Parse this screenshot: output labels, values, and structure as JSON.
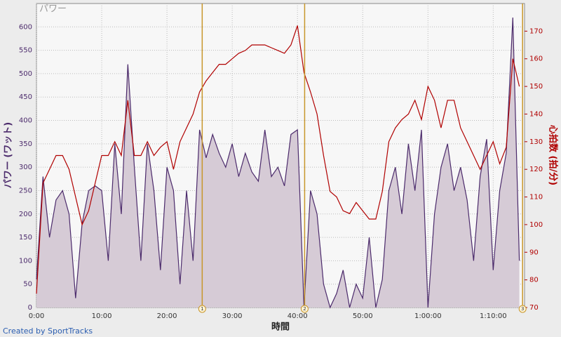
{
  "chart_data": {
    "type": "line",
    "title": "パワー",
    "xlabel": "時間",
    "ylabel": "パワー (ワット)",
    "y2label": "心拍数 (拍/分)",
    "credit": "Created by SportTracks",
    "x": [
      0,
      1,
      2,
      3,
      4,
      5,
      6,
      7,
      8,
      9,
      10,
      11,
      12,
      13,
      14,
      15,
      16,
      17,
      18,
      19,
      20,
      21,
      22,
      23,
      24,
      25,
      26,
      27,
      28,
      29,
      30,
      31,
      32,
      33,
      34,
      35,
      36,
      37,
      38,
      39,
      40,
      41,
      42,
      43,
      44,
      45,
      46,
      47,
      48,
      49,
      50,
      51,
      52,
      53,
      54,
      55,
      56,
      57,
      58,
      59,
      60,
      61,
      62,
      63,
      64,
      65,
      66,
      67,
      68,
      69,
      70,
      71,
      72,
      73,
      74
    ],
    "series": [
      {
        "name": "パワー",
        "color": "#4b2a6b",
        "fill": "#d6cbd6",
        "axis": "y",
        "values": [
          60,
          280,
          150,
          230,
          250,
          200,
          20,
          180,
          250,
          260,
          250,
          100,
          350,
          200,
          520,
          300,
          100,
          350,
          250,
          80,
          300,
          250,
          50,
          250,
          100,
          380,
          320,
          370,
          330,
          300,
          350,
          280,
          330,
          290,
          270,
          380,
          280,
          300,
          260,
          370,
          380,
          0,
          250,
          200,
          50,
          0,
          30,
          80,
          0,
          50,
          20,
          150,
          0,
          60,
          250,
          300,
          200,
          350,
          250,
          380,
          0,
          200,
          300,
          350,
          250,
          300,
          230,
          100,
          280,
          360,
          80,
          250,
          330,
          620,
          100
        ]
      },
      {
        "name": "心拍数",
        "color": "#b00000",
        "axis": "y2",
        "values": [
          75,
          115,
          120,
          125,
          125,
          120,
          110,
          100,
          105,
          115,
          125,
          125,
          130,
          125,
          145,
          125,
          125,
          130,
          125,
          128,
          130,
          120,
          130,
          135,
          140,
          148,
          152,
          155,
          158,
          158,
          160,
          162,
          163,
          165,
          165,
          165,
          164,
          163,
          162,
          165,
          172,
          155,
          148,
          140,
          125,
          112,
          110,
          105,
          104,
          108,
          105,
          102,
          102,
          112,
          130,
          135,
          138,
          140,
          145,
          138,
          150,
          145,
          135,
          145,
          145,
          135,
          130,
          125,
          120,
          125,
          130,
          122,
          128,
          160,
          150
        ]
      }
    ],
    "xlim": [
      0,
      74.8
    ],
    "ylim": [
      0,
      650
    ],
    "y2lim": [
      70,
      180
    ],
    "xticks": [
      {
        "value": 0,
        "label": "0:00"
      },
      {
        "value": 10,
        "label": "10:00"
      },
      {
        "value": 20,
        "label": "20:00"
      },
      {
        "value": 30,
        "label": "30:00"
      },
      {
        "value": 40,
        "label": "40:00"
      },
      {
        "value": 50,
        "label": "50:00"
      },
      {
        "value": 60,
        "label": "1:00:00"
      },
      {
        "value": 70,
        "label": "1:10:00"
      }
    ],
    "yticks": [
      0,
      50,
      100,
      150,
      200,
      250,
      300,
      350,
      400,
      450,
      500,
      550,
      600
    ],
    "y2ticks": [
      70,
      80,
      90,
      100,
      110,
      120,
      130,
      140,
      150,
      160,
      170
    ],
    "laps": [
      {
        "x": 25.4,
        "label": "1"
      },
      {
        "x": 41.1,
        "label": "2"
      },
      {
        "x": 74.5,
        "label": "3"
      }
    ],
    "lap_color": "#c8962a",
    "grid": true
  }
}
